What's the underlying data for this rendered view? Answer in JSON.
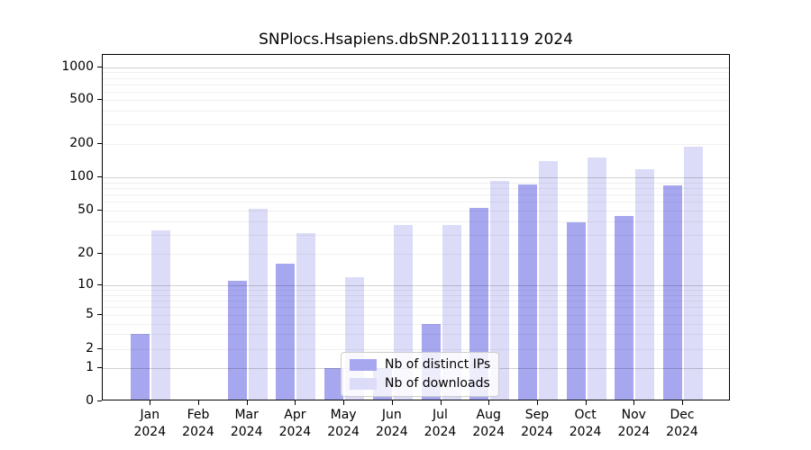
{
  "figure": {
    "title": "SNPlocs.Hsapiens.dbSNP.20111119 2024"
  },
  "chart_data": {
    "type": "bar",
    "title": "SNPlocs.Hsapiens.dbSNP.20111119 2024",
    "x_year": "2024",
    "categories": [
      "Jan",
      "Feb",
      "Mar",
      "Apr",
      "May",
      "Jun",
      "Jul",
      "Aug",
      "Sep",
      "Oct",
      "Nov",
      "Dec"
    ],
    "series": [
      {
        "name": "Nb of distinct IPs",
        "color": "#a7a7f0",
        "values": [
          3,
          0,
          11,
          16,
          1,
          1,
          4,
          53,
          86,
          39,
          45,
          84
        ]
      },
      {
        "name": "Nb of downloads",
        "color": "#dcdcf8",
        "values": [
          33,
          0,
          52,
          31,
          12,
          37,
          37,
          92,
          140,
          150,
          119,
          188
        ]
      }
    ],
    "yscale": "log-like (0 drawn at axis base)",
    "y_ticks": [
      0,
      1,
      2,
      5,
      10,
      20,
      50,
      100,
      200,
      500,
      1000
    ],
    "ylim": [
      0,
      1400
    ],
    "grid": "horizontal log major+minor gridlines drawn above bars",
    "legend": {
      "position": "bottom-center",
      "labels": [
        "Nb of distinct IPs",
        "Nb of downloads"
      ]
    }
  }
}
